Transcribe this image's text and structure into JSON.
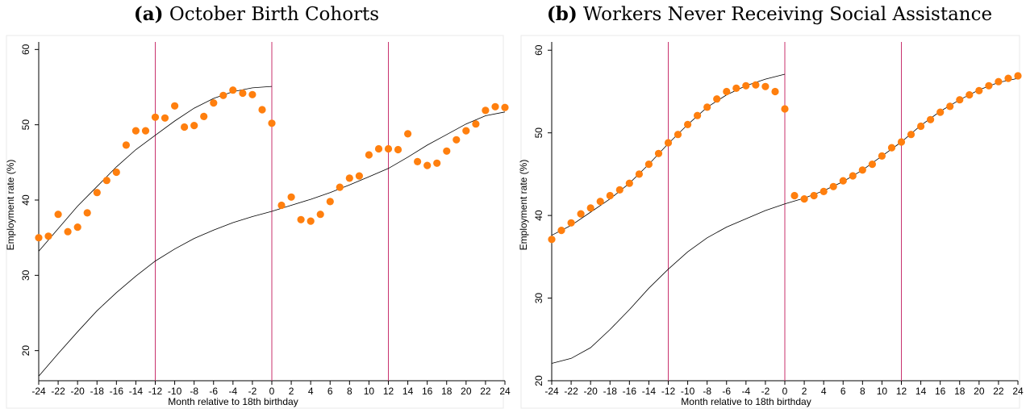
{
  "figure": {
    "panels": [
      {
        "tag": "(a)",
        "title": "October Birth Cohorts"
      },
      {
        "tag": "(b)",
        "title": "Workers Never Receiving Social Assistance"
      }
    ]
  },
  "colors": {
    "dots": "#ff7f0e",
    "vlines": "#c8326e",
    "fit": "#000000",
    "frame": "#eaeaea"
  },
  "chart_data": [
    {
      "type": "scatter",
      "title": "October Birth Cohorts",
      "xlabel": "Month relative to 18th birthday",
      "ylabel": "Employment rate (%)",
      "xlim": [
        -24,
        24
      ],
      "ylim": [
        16,
        61
      ],
      "xticks": [
        -24,
        -22,
        -20,
        -18,
        -16,
        -14,
        -12,
        -10,
        -8,
        -6,
        -4,
        -2,
        0,
        2,
        4,
        6,
        8,
        10,
        12,
        14,
        16,
        18,
        20,
        22,
        24
      ],
      "yticks": [
        20,
        30,
        40,
        50,
        60
      ],
      "vlines": [
        -12,
        0,
        12
      ],
      "points": {
        "x": [
          -24,
          -23,
          -22,
          -21,
          -20,
          -19,
          -18,
          -17,
          -16,
          -15,
          -14,
          -13,
          -12,
          -11,
          -10,
          -9,
          -8,
          -7,
          -6,
          -5,
          -4,
          -3,
          -2,
          -1,
          0,
          1,
          2,
          3,
          4,
          5,
          6,
          7,
          8,
          9,
          10,
          11,
          12,
          13,
          14,
          15,
          16,
          17,
          18,
          19,
          20,
          21,
          22,
          23,
          24
        ],
        "y": [
          35.0,
          35.2,
          38.1,
          35.8,
          36.4,
          38.3,
          41.0,
          42.6,
          43.7,
          47.3,
          49.2,
          49.2,
          51.0,
          50.9,
          52.5,
          49.7,
          49.9,
          51.1,
          52.9,
          53.9,
          54.6,
          54.2,
          54.0,
          52.0,
          50.2,
          39.3,
          40.4,
          37.4,
          37.2,
          38.1,
          39.8,
          41.7,
          42.9,
          43.2,
          46.0,
          46.8,
          46.8,
          46.7,
          48.8,
          45.1,
          44.6,
          44.9,
          46.5,
          48.0,
          49.2,
          50.1,
          51.9,
          52.4,
          52.3
        ]
      },
      "fits": [
        {
          "x": [
            -24,
            -22,
            -20,
            -18,
            -16,
            -14,
            -12,
            -10,
            -8,
            -6,
            -4,
            -2,
            0
          ],
          "y": [
            33.2,
            36.2,
            39.2,
            41.8,
            44.4,
            46.7,
            48.6,
            50.5,
            52.2,
            53.5,
            54.4,
            54.9,
            55.1
          ]
        },
        {
          "x": [
            -24,
            -22,
            -20,
            -18,
            -16,
            -14,
            -12,
            -10,
            -8,
            -6,
            -4,
            -2,
            0
          ],
          "y": [
            16.6,
            19.6,
            22.5,
            25.3,
            27.7,
            29.9,
            31.9,
            33.5,
            34.9,
            36.0,
            37.0,
            37.8,
            38.5
          ]
        },
        {
          "x": [
            0,
            2,
            4,
            6,
            8,
            10,
            12,
            14,
            16,
            18,
            20,
            22,
            24
          ],
          "y": [
            38.5,
            39.3,
            40.1,
            41.0,
            42.0,
            43.1,
            44.2,
            45.7,
            47.3,
            48.7,
            50.1,
            51.2,
            51.7
          ]
        }
      ]
    },
    {
      "type": "scatter",
      "title": "Workers Never Receiving Social Assistance",
      "xlabel": "Month relative to 18th birthday",
      "ylabel": "Employment rate (%)",
      "xlim": [
        -24,
        24
      ],
      "ylim": [
        20,
        61
      ],
      "xticks": [
        -24,
        -22,
        -20,
        -18,
        -16,
        -14,
        -12,
        -10,
        -8,
        -6,
        -4,
        -2,
        0,
        2,
        4,
        6,
        8,
        10,
        12,
        14,
        16,
        18,
        20,
        22,
        24
      ],
      "yticks": [
        20,
        30,
        40,
        50,
        60
      ],
      "vlines": [
        -12,
        0,
        12
      ],
      "points": {
        "x": [
          -24,
          -23,
          -22,
          -21,
          -20,
          -19,
          -18,
          -17,
          -16,
          -15,
          -14,
          -13,
          -12,
          -11,
          -10,
          -9,
          -8,
          -7,
          -6,
          -5,
          -4,
          -3,
          -2,
          -1,
          0,
          1,
          2,
          3,
          4,
          5,
          6,
          7,
          8,
          9,
          10,
          11,
          12,
          13,
          14,
          15,
          16,
          17,
          18,
          19,
          20,
          21,
          22,
          23,
          24
        ],
        "y": [
          37.1,
          38.2,
          39.1,
          40.2,
          40.9,
          41.7,
          42.4,
          43.1,
          43.9,
          45.0,
          46.2,
          47.5,
          48.8,
          49.8,
          51.0,
          52.1,
          53.1,
          54.1,
          55.0,
          55.4,
          55.7,
          55.8,
          55.6,
          55.0,
          52.9,
          42.4,
          42.0,
          42.4,
          42.9,
          43.5,
          44.2,
          44.8,
          45.5,
          46.2,
          47.2,
          48.2,
          48.9,
          49.8,
          50.8,
          51.6,
          52.5,
          53.2,
          54.0,
          54.6,
          55.1,
          55.7,
          56.2,
          56.6,
          56.9
        ]
      },
      "fits": [
        {
          "x": [
            -24,
            -22,
            -20,
            -18,
            -16,
            -14,
            -12,
            -10,
            -8,
            -6,
            -4,
            -2,
            0
          ],
          "y": [
            37.6,
            38.8,
            40.4,
            42.0,
            43.9,
            46.2,
            48.7,
            51.0,
            53.1,
            54.6,
            55.7,
            56.5,
            57.1
          ]
        },
        {
          "x": [
            -24,
            -22,
            -20,
            -18,
            -16,
            -14,
            -12,
            -10,
            -8,
            -6,
            -4,
            -2,
            0
          ],
          "y": [
            22.1,
            22.7,
            24.0,
            26.2,
            28.6,
            31.2,
            33.5,
            35.6,
            37.3,
            38.6,
            39.6,
            40.6,
            41.4
          ]
        },
        {
          "x": [
            0,
            2,
            4,
            6,
            8,
            10,
            12,
            14,
            16,
            18,
            20,
            22,
            24
          ],
          "y": [
            41.4,
            42.1,
            43.0,
            44.1,
            45.5,
            47.2,
            48.9,
            50.9,
            52.6,
            54.0,
            55.2,
            56.1,
            56.6
          ]
        }
      ]
    }
  ]
}
